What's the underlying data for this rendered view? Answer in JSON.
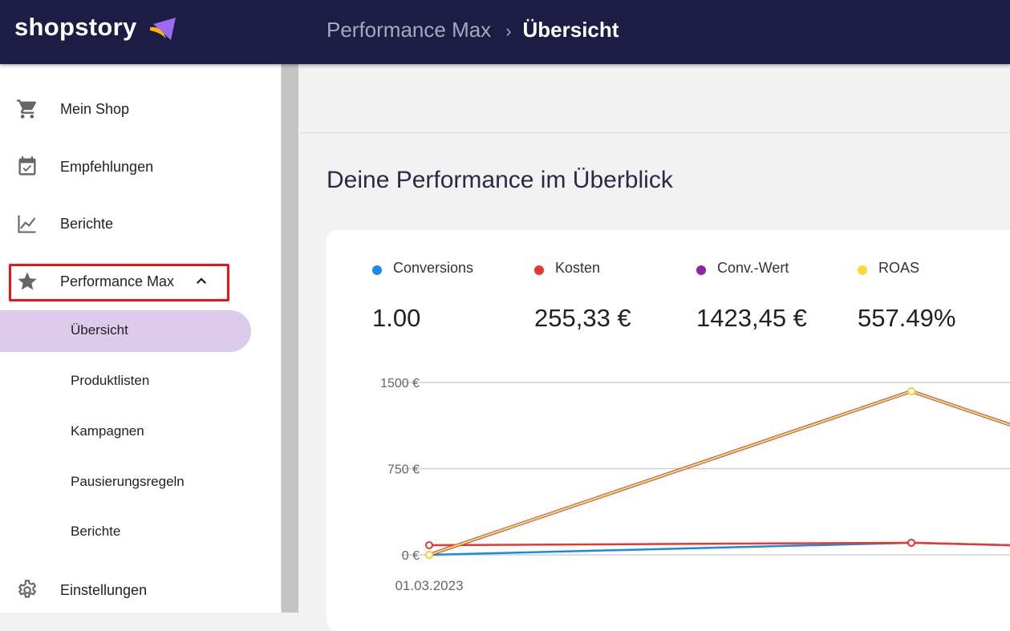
{
  "header": {
    "logo": "shopstory",
    "breadcrumb": [
      "Performance Max",
      "Übersicht"
    ]
  },
  "sidebar": {
    "items": [
      {
        "label": "Mein Shop",
        "icon": "cart-icon"
      },
      {
        "label": "Empfehlungen",
        "icon": "calendar-check-icon"
      },
      {
        "label": "Berichte",
        "icon": "chart-line-icon"
      },
      {
        "label": "Performance Max",
        "icon": "star-icon"
      },
      {
        "label": "Einstellungen",
        "icon": "gear-icon"
      }
    ],
    "subitems": [
      "Übersicht",
      "Produktlisten",
      "Kampagnen",
      "Pausierungsregeln",
      "Berichte"
    ]
  },
  "main": {
    "title": "Deine Performance im Überblick",
    "kpis": [
      {
        "name": "Conversions",
        "value": "1.00",
        "color": "#1e88e5"
      },
      {
        "name": "Kosten",
        "value": "255,33 €",
        "color": "#e53935"
      },
      {
        "name": "Conv.-Wert",
        "value": "1423,45 €",
        "color": "#8e24aa"
      },
      {
        "name": "ROAS",
        "value": "557.49%",
        "color": "#fdd835"
      }
    ]
  },
  "chart_data": {
    "type": "line",
    "x": [
      "01.03.2023",
      "",
      ""
    ],
    "yticks": [
      "0 €",
      "750 €",
      "1500 €"
    ],
    "ylim": [
      0,
      1500
    ],
    "series": [
      {
        "name": "Conversions",
        "color": "#1e88e5",
        "values": [
          0,
          105,
          0
        ]
      },
      {
        "name": "Kosten",
        "color": "#e53935",
        "values": [
          84,
          105,
          0
        ]
      },
      {
        "name": "Conv.-Wert",
        "color": "#8e24aa",
        "values": [
          0,
          1423,
          0
        ]
      },
      {
        "name": "ROAS",
        "color": "#fdd835",
        "values": [
          0,
          1423,
          0
        ]
      }
    ]
  }
}
